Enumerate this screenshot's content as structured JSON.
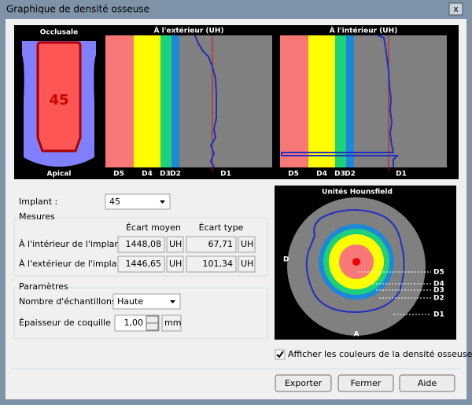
{
  "window": {
    "title": "Graphique de densité osseuse"
  },
  "implant_view": {
    "top_label": "Occlusale",
    "number": "45",
    "bottom_label": "Apical"
  },
  "outside_graph": {
    "title": "À l'extérieur (UH)",
    "scale": [
      "D5",
      "D4",
      "D3",
      "D2",
      "D1"
    ]
  },
  "inside_graph": {
    "title": "À l'intérieur (UH)",
    "scale": [
      "D5",
      "D4",
      "D3",
      "D2",
      "D1"
    ]
  },
  "implant": {
    "label": "Implant :",
    "value": "45"
  },
  "measures": {
    "group": "Mesures",
    "headers": [
      "Écart moyen",
      "Écart type"
    ],
    "rows": [
      {
        "label": "À l'intérieur de l'implant :",
        "mean": "1448,08",
        "mean_unit": "UH",
        "std": "67,71",
        "std_unit": "UH"
      },
      {
        "label": "À l'extérieur de l'implant :",
        "mean": "1446,65",
        "mean_unit": "UH",
        "std": "101,34",
        "std_unit": "UH"
      }
    ]
  },
  "parameters": {
    "group": "Paramètres",
    "samples_label": "Nombre d'échantillons :",
    "samples_value": "Haute",
    "shell_label": "Épaisseur de coquille :",
    "shell_value": "1,00",
    "shell_unit": "mm"
  },
  "hounsfield": {
    "title": "Unités Hounsfield",
    "left": "D",
    "bottom": "A",
    "legend": [
      "D5",
      "D4",
      "D3",
      "D2",
      "D1"
    ]
  },
  "checkbox": {
    "label": "Afficher les couleurs de la densité osseuse",
    "checked": true
  },
  "buttons": [
    "Exporter",
    "Fermer",
    "Aide"
  ]
}
